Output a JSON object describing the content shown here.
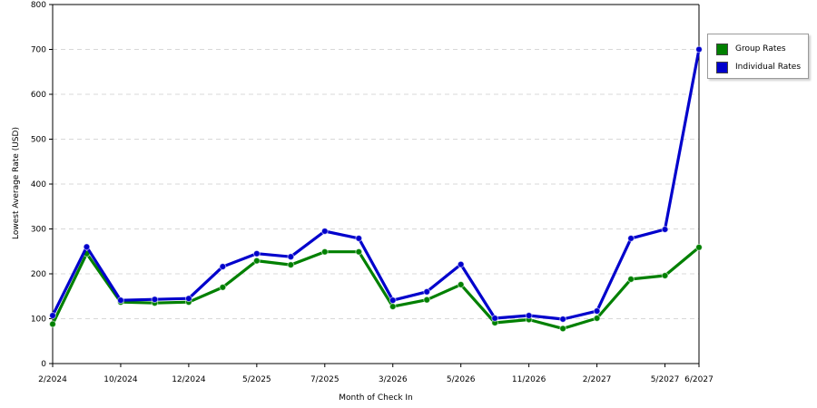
{
  "chart_data": {
    "type": "line",
    "xlabel": "Month of Check In",
    "ylabel": "Lowest Average Rate (USD)",
    "ylim": [
      0,
      800
    ],
    "yticks": [
      0,
      100,
      200,
      300,
      400,
      500,
      600,
      700,
      800
    ],
    "grid": "horizontal dashed",
    "legend_position": "right",
    "x_tick_labels": [
      {
        "index": 0,
        "label": "2/2024"
      },
      {
        "index": 2,
        "label": "10/2024"
      },
      {
        "index": 4,
        "label": "12/2024"
      },
      {
        "index": 6,
        "label": "5/2025"
      },
      {
        "index": 8,
        "label": "7/2025"
      },
      {
        "index": 10,
        "label": "3/2026"
      },
      {
        "index": 12,
        "label": "5/2026"
      },
      {
        "index": 14,
        "label": "11/2026"
      },
      {
        "index": 16,
        "label": "2/2027"
      },
      {
        "index": 18,
        "label": "5/2027"
      },
      {
        "index": 19,
        "label": "6/2027"
      }
    ],
    "series": [
      {
        "name": "Group Rates",
        "color": "#008000",
        "values": [
          88,
          245,
          137,
          135,
          137,
          170,
          229,
          220,
          249,
          249,
          127,
          142,
          176,
          91,
          98,
          78,
          101,
          188,
          196,
          259
        ]
      },
      {
        "name": "Individual Rates",
        "color": "#0000cc",
        "values": [
          107,
          260,
          141,
          143,
          145,
          216,
          245,
          238,
          295,
          279,
          141,
          160,
          221,
          101,
          107,
          99,
          117,
          279,
          299,
          700
        ]
      }
    ]
  }
}
